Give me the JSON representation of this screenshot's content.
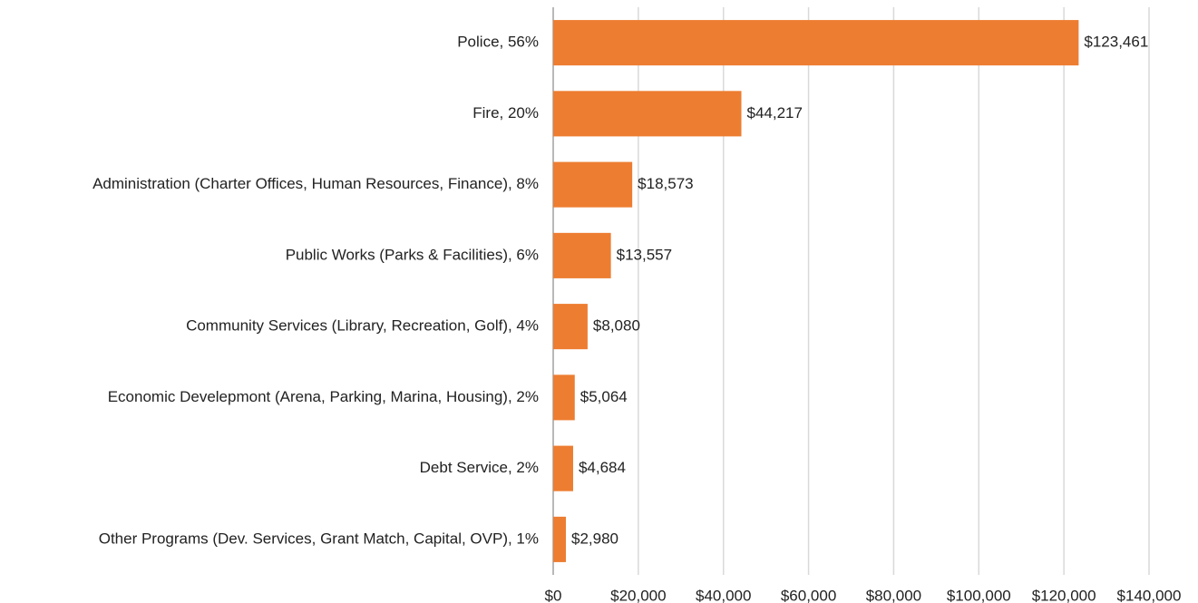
{
  "chart_data": {
    "type": "bar",
    "orientation": "horizontal",
    "categories": [
      "Police, 56%",
      "Fire, 20%",
      "Administration (Charter Offices, Human Resources, Finance), 8%",
      "Public Works (Parks & Facilities), 6%",
      "Community Services (Library, Recreation, Golf), 4%",
      "Economic Develepmont (Arena, Parking, Marina, Housing), 2%",
      "Debt Service, 2%",
      "Other Programs (Dev. Services, Grant Match, Capital, OVP), 1%"
    ],
    "values": [
      123461,
      44217,
      18573,
      13557,
      8080,
      5064,
      4684,
      2980
    ],
    "value_labels": [
      "$123,461",
      "$44,217",
      "$18,573",
      "$13,557",
      "$8,080",
      "$5,064",
      "$4,684",
      "$2,980"
    ],
    "color": "#ed7d31",
    "xlim": [
      0,
      140000
    ],
    "xticks": [
      {
        "value": 0,
        "label": "$0"
      },
      {
        "value": 20000,
        "label": "$20,000"
      },
      {
        "value": 40000,
        "label": "$40,000"
      },
      {
        "value": 60000,
        "label": "$60,000"
      },
      {
        "value": 80000,
        "label": "$80,000"
      },
      {
        "value": 100000,
        "label": "$100,000"
      },
      {
        "value": 120000,
        "label": "$120,000"
      },
      {
        "value": 140000,
        "label": "$140,000"
      }
    ],
    "grid": true
  }
}
